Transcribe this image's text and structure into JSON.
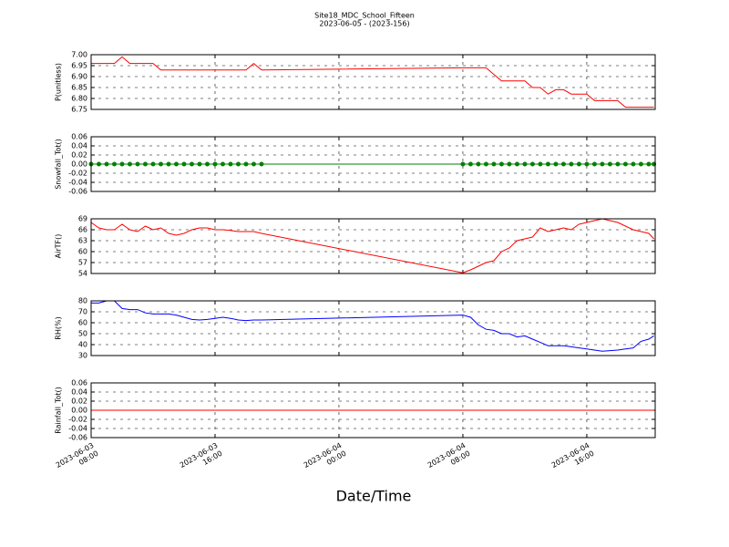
{
  "chart_data": {
    "type": "line",
    "title": "Site18_MDC_School_Fifteen",
    "subtitle": "2023-06-05 - (2023-156)",
    "xlabel": "Date/Time",
    "grid": true,
    "xlim": [
      "2023-06-03 08:00",
      "2023-06-04 20:25"
    ],
    "xticks": [
      "2023-06-03 08:00",
      "2023-06-03 16:00",
      "2023-06-04 00:00",
      "2023-06-04 08:00",
      "2023-06-04 16:00"
    ],
    "x": [
      "2023-06-03 08:00",
      "2023-06-03 08:30",
      "2023-06-03 09:00",
      "2023-06-03 09:30",
      "2023-06-03 10:00",
      "2023-06-03 10:30",
      "2023-06-03 11:00",
      "2023-06-03 11:30",
      "2023-06-03 12:00",
      "2023-06-03 12:30",
      "2023-06-03 13:00",
      "2023-06-03 13:30",
      "2023-06-03 14:00",
      "2023-06-03 14:30",
      "2023-06-03 15:00",
      "2023-06-03 15:30",
      "2023-06-03 16:00",
      "2023-06-03 16:30",
      "2023-06-03 17:00",
      "2023-06-03 17:30",
      "2023-06-03 18:00",
      "2023-06-03 18:30",
      "2023-06-03 19:00",
      "2023-06-04 08:00",
      "2023-06-04 08:30",
      "2023-06-04 09:00",
      "2023-06-04 09:30",
      "2023-06-04 10:00",
      "2023-06-04 10:30",
      "2023-06-04 11:00",
      "2023-06-04 11:30",
      "2023-06-04 12:00",
      "2023-06-04 12:30",
      "2023-06-04 13:00",
      "2023-06-04 13:30",
      "2023-06-04 14:00",
      "2023-06-04 14:30",
      "2023-06-04 15:00",
      "2023-06-04 15:30",
      "2023-06-04 16:00",
      "2023-06-04 16:30",
      "2023-06-04 17:00",
      "2023-06-04 17:30",
      "2023-06-04 18:00",
      "2023-06-04 18:30",
      "2023-06-04 19:00",
      "2023-06-04 19:30",
      "2023-06-04 20:00",
      "2023-06-04 20:20"
    ],
    "panels": [
      {
        "ylabel": "P(unitless)",
        "ylim": [
          6.75,
          7.0
        ],
        "yticks": [
          6.75,
          {
            "value": 6.8,
            "label": "6.80"
          },
          6.85,
          {
            "value": 6.9,
            "label": "6.90"
          },
          6.95,
          {
            "value": 7.0,
            "label": "7.00"
          }
        ],
        "series": [
          {
            "color": "#ff0000",
            "values": [
              6.96,
              6.96,
              6.96,
              6.96,
              6.99,
              6.96,
              6.96,
              6.96,
              6.96,
              6.93,
              6.93,
              6.93,
              6.93,
              6.93,
              6.93,
              6.93,
              6.93,
              6.93,
              6.93,
              6.93,
              6.93,
              6.96,
              6.93,
              6.94,
              6.94,
              6.94,
              6.94,
              6.91,
              6.88,
              6.88,
              6.88,
              6.88,
              6.85,
              6.85,
              6.82,
              6.84,
              6.84,
              6.82,
              6.82,
              6.82,
              6.79,
              6.79,
              6.79,
              6.79,
              6.76,
              6.76,
              6.76,
              6.76,
              6.76
            ]
          }
        ]
      },
      {
        "ylabel": "Snowfall_Tot()",
        "ylim": [
          -0.06,
          0.06
        ],
        "yticks": [
          -0.06,
          -0.04,
          -0.02,
          {
            "value": 0,
            "label": "0.00"
          },
          0.02,
          0.04,
          0.06
        ],
        "series": [
          {
            "color": "#008000",
            "marker": "o",
            "values": [
              0,
              0,
              0,
              0,
              0,
              0,
              0,
              0,
              0,
              0,
              0,
              0,
              0,
              0,
              0,
              0,
              0,
              0,
              0,
              0,
              0,
              0,
              0,
              0,
              0,
              0,
              0,
              0,
              0,
              0,
              0,
              0,
              0,
              0,
              0,
              0,
              0,
              0,
              0,
              0,
              0,
              0,
              0,
              0,
              0,
              0,
              0,
              0,
              0
            ]
          }
        ]
      },
      {
        "ylabel": "AirTF()",
        "ylim": [
          54,
          69
        ],
        "yticks": [
          54,
          57,
          60,
          63,
          66,
          69
        ],
        "series": [
          {
            "color": "#ff0000",
            "values": [
              68,
              66.5,
              66,
              66,
              67.5,
              66,
              65.5,
              67,
              66,
              66.5,
              65,
              64.5,
              65,
              66,
              66.5,
              66.5,
              66,
              66,
              65.8,
              65.5,
              65.5,
              65.5,
              65,
              54.2,
              55,
              56,
              57,
              57.5,
              60,
              61,
              63,
              63.5,
              64,
              66.5,
              65.5,
              66,
              66.5,
              66,
              67.5,
              68,
              68.5,
              69,
              68.5,
              68,
              67,
              66,
              65.5,
              65,
              63.5
            ]
          }
        ]
      },
      {
        "ylabel": "RH(%)",
        "ylim": [
          30,
          80
        ],
        "yticks": [
          30,
          40,
          50,
          60,
          70,
          80
        ],
        "series": [
          {
            "color": "#0000ff",
            "values": [
              78,
              78,
              80,
              80,
              73,
              72,
              72,
              69,
              68,
              68,
              68,
              67,
              65,
              63,
              62.5,
              63,
              64,
              65,
              64,
              62.5,
              62,
              62.5,
              62.5,
              67,
              65,
              58,
              54,
              53,
              50,
              50,
              47,
              48,
              45,
              42,
              39,
              39,
              39,
              38,
              37,
              36,
              35,
              34,
              34.5,
              35,
              36,
              37,
              43,
              45,
              48
            ]
          }
        ]
      },
      {
        "ylabel": "Rainfall_Tot()",
        "ylim": [
          -0.06,
          0.06
        ],
        "yticks": [
          -0.06,
          -0.04,
          -0.02,
          {
            "value": 0,
            "label": "0.00"
          },
          0.02,
          0.04,
          0.06
        ],
        "series": [
          {
            "color": "#ff0000",
            "values": [
              0,
              0,
              0,
              0,
              0,
              0,
              0,
              0,
              0,
              0,
              0,
              0,
              0,
              0,
              0,
              0,
              0,
              0,
              0,
              0,
              0,
              0,
              0,
              0,
              0,
              0,
              0,
              0,
              0,
              0,
              0,
              0,
              0,
              0,
              0,
              0,
              0,
              0,
              0,
              0,
              0,
              0,
              0,
              0,
              0,
              0,
              0,
              0,
              0
            ]
          }
        ]
      }
    ]
  }
}
